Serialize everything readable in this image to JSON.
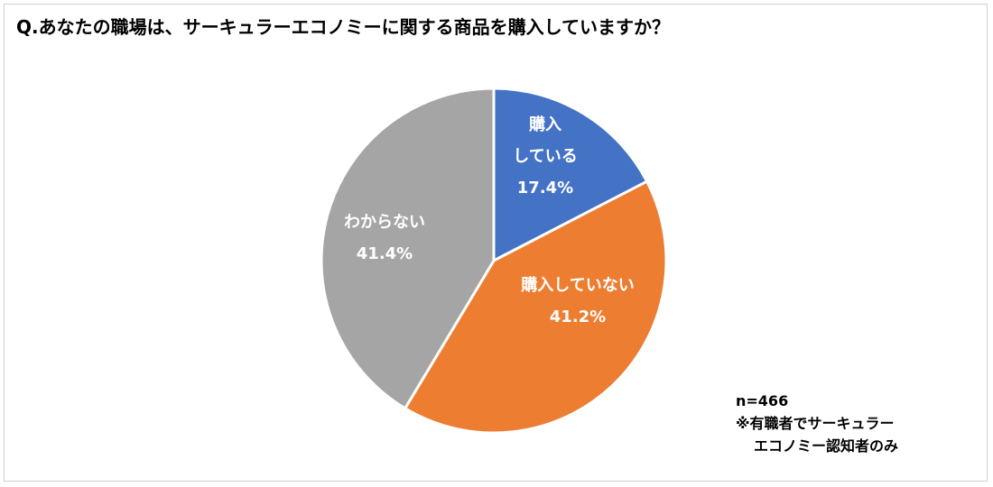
{
  "title": "Q.あなたの職場は、サーキュラーエコノミーに関する商品を購入していますか？",
  "notes": {
    "sample": "n=466",
    "line1": "※有職者でサーキュラー",
    "line2": "エコノミー認知者のみ"
  },
  "chart_data": {
    "type": "pie",
    "title": "Q.あなたの職場は、サーキュラーエコノミーに関する商品を購入していますか？",
    "slices": [
      {
        "label_lines": [
          "購入",
          "している"
        ],
        "value": 17.4,
        "value_label": "17.4%",
        "color": "#4472C4"
      },
      {
        "label_lines": [
          "購入していない"
        ],
        "value": 41.2,
        "value_label": "41.2%",
        "color": "#ED7D31"
      },
      {
        "label_lines": [
          "わからない"
        ],
        "value": 41.4,
        "value_label": "41.4%",
        "color": "#A5A5A5"
      }
    ],
    "start": "12 o'clock, clockwise",
    "legend": "none"
  }
}
